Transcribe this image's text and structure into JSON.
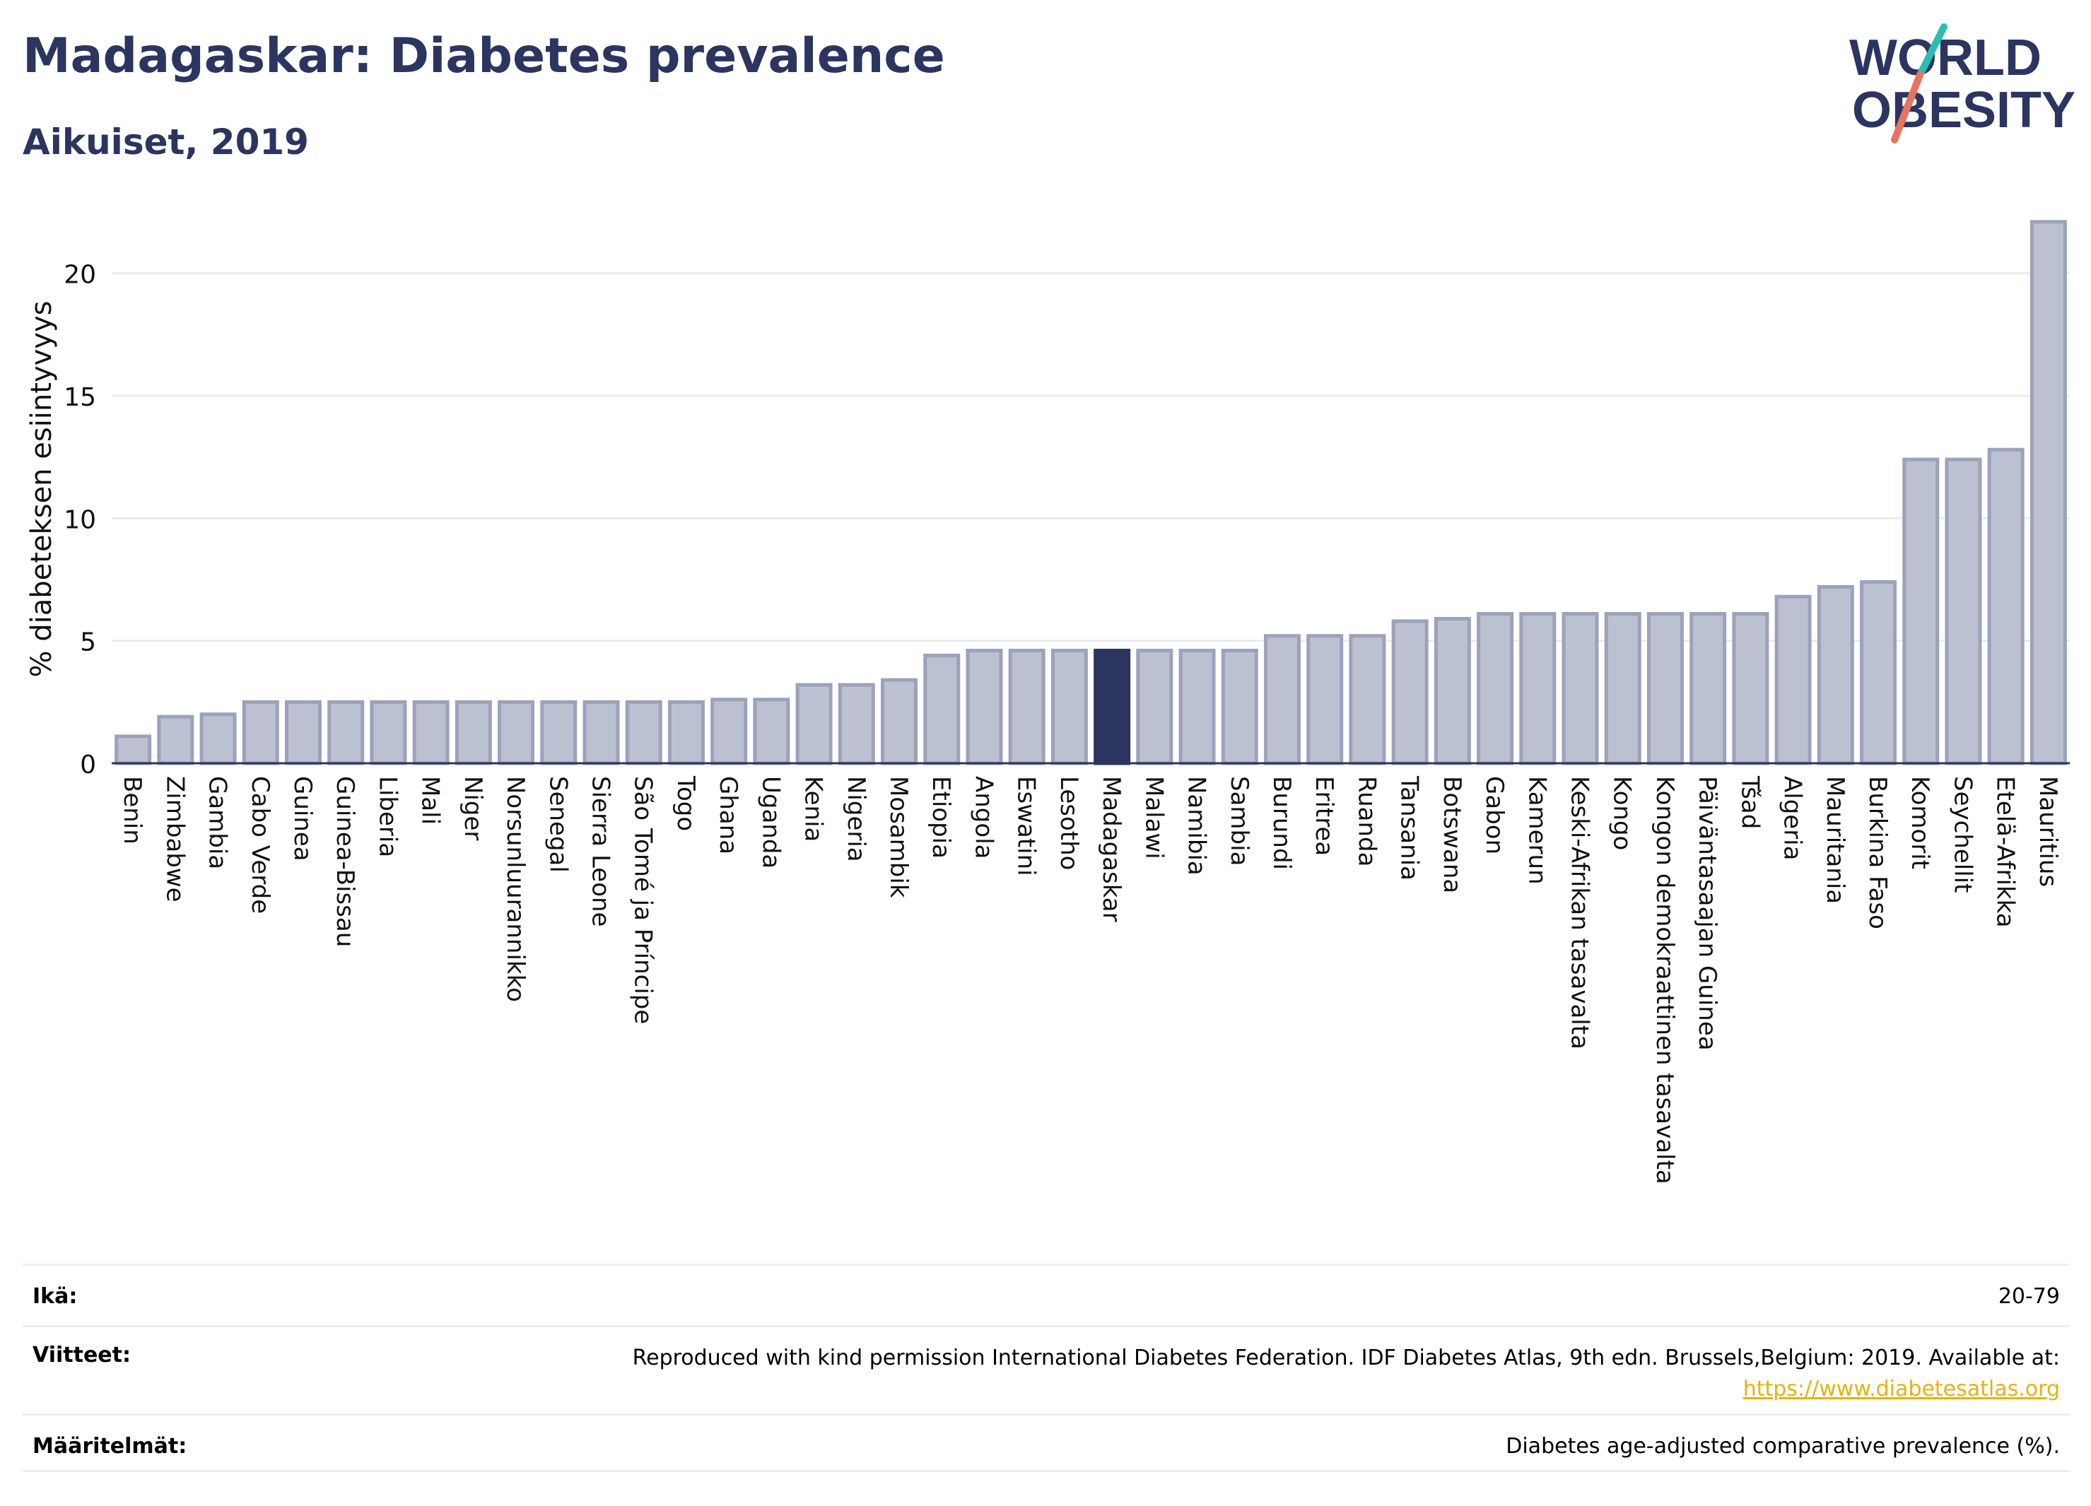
{
  "header": {
    "title": "Madagaskar: Diabetes prevalence",
    "subtitle": "Aikuiset, 2019"
  },
  "logo": {
    "line1": "WORLD",
    "line2": "OBESITY"
  },
  "colors": {
    "bar": "#bcc1d1",
    "bar_stroke": "#9ba2ba",
    "highlight": "#2b3560",
    "title": "#2b3560",
    "logo_teal": "#2bbfb3",
    "logo_coral": "#e8735f",
    "link": "#e8b20f"
  },
  "chart_data": {
    "type": "bar",
    "ylabel": "% diabeteksen esiintyvyys",
    "xlabel": "",
    "ylim": [
      0,
      22.5
    ],
    "yticks": [
      0,
      5,
      10,
      15,
      20
    ],
    "grid": true,
    "highlight": "Madagaskar",
    "categories": [
      "Benin",
      "Zimbabwe",
      "Gambia",
      "Cabo Verde",
      "Guinea",
      "Guinea-Bissau",
      "Liberia",
      "Mali",
      "Niger",
      "Norsunluurannikko",
      "Senegal",
      "Sierra Leone",
      "São Tomé ja Príncipe",
      "Togo",
      "Ghana",
      "Uganda",
      "Kenia",
      "Nigeria",
      "Mosambik",
      "Etiopia",
      "Angola",
      "Eswatini",
      "Lesotho",
      "Madagaskar",
      "Malawi",
      "Namibia",
      "Sambia",
      "Burundi",
      "Eritrea",
      "Ruanda",
      "Tansania",
      "Botswana",
      "Gabon",
      "Kamerun",
      "Keski-Afrikan tasavalta",
      "Kongo",
      "Kongon demokraattinen tasavalta",
      "Päiväntasaajan Guinea",
      "Tšad",
      "Algeria",
      "Mauritania",
      "Burkina Faso",
      "Komorit",
      "Seychellit",
      "Etelä-Afrikka",
      "Mauritius"
    ],
    "values": [
      1.1,
      1.9,
      2.0,
      2.5,
      2.5,
      2.5,
      2.5,
      2.5,
      2.5,
      2.5,
      2.5,
      2.5,
      2.5,
      2.5,
      2.6,
      2.6,
      3.2,
      3.2,
      3.4,
      4.4,
      4.6,
      4.6,
      4.6,
      4.6,
      4.6,
      4.6,
      4.6,
      5.2,
      5.2,
      5.2,
      5.8,
      5.9,
      6.1,
      6.1,
      6.1,
      6.1,
      6.1,
      6.1,
      6.1,
      6.8,
      7.2,
      7.4,
      12.4,
      12.4,
      12.8,
      22.1
    ]
  },
  "footer": {
    "age_label": "Ikä:",
    "age_value": "20-79",
    "refs_label": "Viitteet:",
    "refs_text": "Reproduced with kind permission International Diabetes Federation. IDF Diabetes Atlas, 9th edn. Brussels,Belgium: 2019. Available at:",
    "refs_link": "https://www.diabetesatlas.org",
    "defs_label": "Määritelmät:",
    "defs_value": "Diabetes age-adjusted comparative prevalence (%)."
  }
}
